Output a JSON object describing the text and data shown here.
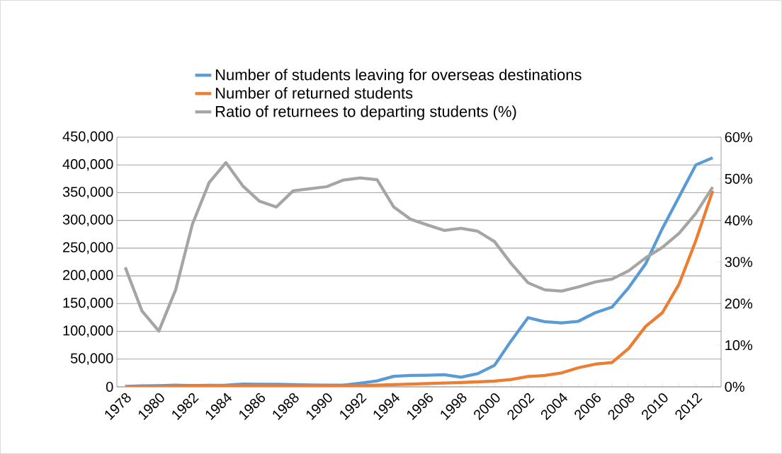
{
  "chart_data": {
    "type": "line",
    "categories": [
      "1978",
      null,
      "1980",
      null,
      "1982",
      null,
      "1984",
      null,
      "1986",
      null,
      "1988",
      null,
      "1990",
      null,
      "1992",
      null,
      "1994",
      null,
      "1996",
      null,
      "1998",
      null,
      "2000",
      null,
      "2002",
      null,
      "2004",
      null,
      "2006",
      null,
      "2008",
      null,
      "2010",
      null,
      "2012",
      null
    ],
    "series": [
      {
        "name": "Number of students leaving for overseas destinations",
        "color": "#5b9bd5",
        "values": [
          860,
          1800,
          2100,
          2900,
          2300,
          2600,
          3100,
          4900,
          4700,
          4700,
          3800,
          3300,
          3000,
          2900,
          6500,
          10700,
          19000,
          20400,
          20900,
          21700,
          17400,
          23800,
          38700,
          83300,
          124600,
          117300,
          115200,
          118200,
          133500,
          143700,
          179000,
          221500,
          285300,
          342700,
          400100,
          412900
        ]
      },
      {
        "name": "Number of returned students",
        "color": "#ed7d31",
        "values": [
          250,
          250,
          200,
          700,
          1000,
          1300,
          1700,
          2000,
          2000,
          2000,
          2000,
          1800,
          1600,
          1500,
          2000,
          3000,
          4000,
          5000,
          6000,
          6800,
          7700,
          8900,
          10200,
          13200,
          18700,
          20400,
          25100,
          34400,
          40800,
          43800,
          69300,
          108800,
          133500,
          185400,
          264000,
          353300
        ]
      },
      {
        "name": "Ratio of returnees to departing students (%)",
        "color": "#a5a5a5",
        "axis": "y2",
        "values": [
          28.7,
          18.2,
          13.4,
          23.3,
          39.1,
          49.1,
          53.9,
          48.3,
          44.6,
          43.2,
          47.1,
          47.6,
          48.1,
          49.7,
          50.2,
          49.8,
          43.2,
          40.3,
          38.9,
          37.6,
          38.1,
          37.4,
          34.9,
          29.6,
          25.0,
          23.3,
          23.0,
          24.0,
          25.2,
          25.9,
          27.9,
          31.0,
          33.5,
          36.9,
          41.7,
          48.0
        ]
      }
    ],
    "ylim": [
      0,
      450000
    ],
    "yticks": [
      {
        "value": 0,
        "label": "0"
      },
      {
        "value": 50000,
        "label": "50,000"
      },
      {
        "value": 100000,
        "label": "100,000"
      },
      {
        "value": 150000,
        "label": "150,000"
      },
      {
        "value": 200000,
        "label": "200,000"
      },
      {
        "value": 250000,
        "label": "250,000"
      },
      {
        "value": 300000,
        "label": "300,000"
      },
      {
        "value": 350000,
        "label": "350,000"
      },
      {
        "value": 400000,
        "label": "400,000"
      },
      {
        "value": 450000,
        "label": "450,000"
      }
    ],
    "y2lim": [
      0,
      60
    ],
    "y2ticks": [
      {
        "value": 0,
        "label": "0%"
      },
      {
        "value": 10,
        "label": "10%"
      },
      {
        "value": 20,
        "label": "20%"
      },
      {
        "value": 30,
        "label": "30%"
      },
      {
        "value": 40,
        "label": "40%"
      },
      {
        "value": 50,
        "label": "50%"
      },
      {
        "value": 60,
        "label": "60%"
      }
    ],
    "grid": "y",
    "legend": "top",
    "marker": "none",
    "line_style": "solid"
  }
}
